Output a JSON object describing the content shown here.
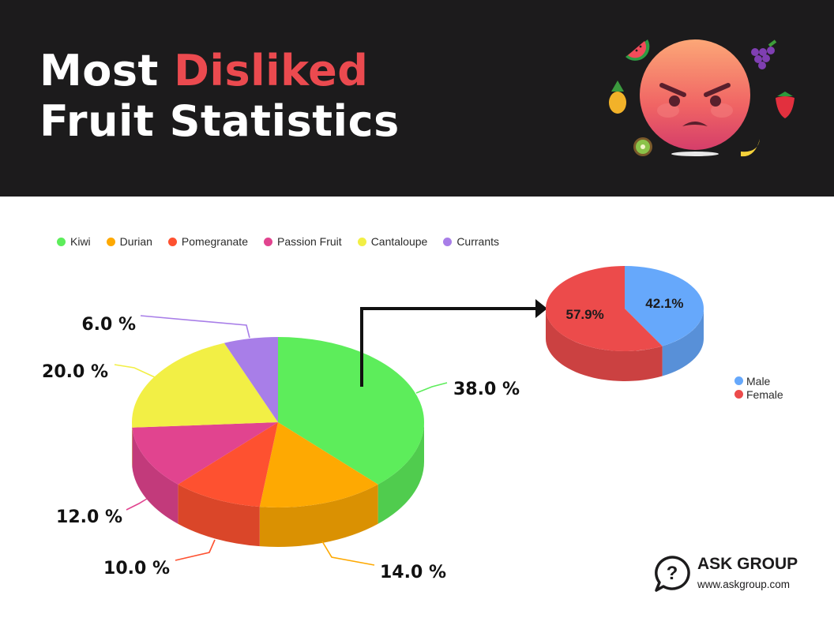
{
  "header": {
    "title_line1_prefix": "Most",
    "title_line1_highlight": "Disliked",
    "title_line2": "Fruit Statistics",
    "highlight_color": "#eb4a4f",
    "illustration": {
      "icons": [
        "angry-face-icon",
        "watermelon-icon",
        "grapes-icon",
        "pineapple-icon",
        "strawberry-icon",
        "kiwi-icon",
        "banana-icon"
      ]
    }
  },
  "chart_data": [
    {
      "type": "pie",
      "style": "3d",
      "categories": [
        "Kiwi",
        "Durian",
        "Pomegranate",
        "Passion Fruit",
        "Cantaloupe",
        "Currants"
      ],
      "values": [
        38.0,
        14.0,
        10.0,
        12.0,
        20.0,
        6.0
      ],
      "labels": [
        "38.0 %",
        "14.0 %",
        "10.0 %",
        "12.0 %",
        "20.0 %",
        "6.0 %"
      ],
      "colors": [
        "#5ded5b",
        "#fea902",
        "#fe5130",
        "#e1448f",
        "#f2ef45",
        "#a87ee8"
      ],
      "legend": "top-left"
    },
    {
      "type": "pie",
      "style": "3d",
      "categories": [
        "Male",
        "Female"
      ],
      "values": [
        42.1,
        57.9
      ],
      "labels": [
        "42.1%",
        "57.9%"
      ],
      "colors": [
        "#66a8fb",
        "#ec4b4b"
      ],
      "legend": "bottom-right",
      "breakdown_of": "Kiwi"
    }
  ],
  "brand": {
    "name": "ASK GROUP",
    "url": "www.askgroup.com",
    "icon": "question-bubble-icon"
  }
}
